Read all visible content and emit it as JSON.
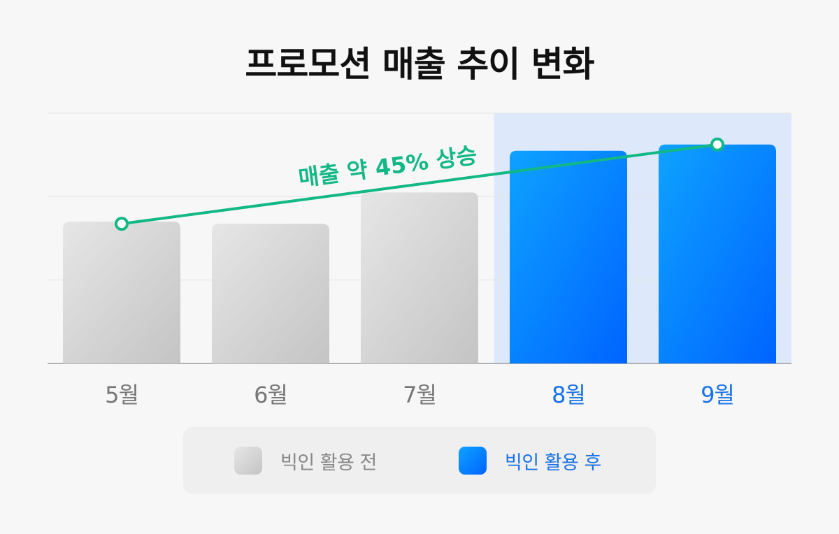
{
  "title": "프로모션 매출 추이 변화",
  "chart_data": {
    "type": "bar",
    "categories": [
      "5월",
      "6월",
      "7월",
      "8월",
      "9월"
    ],
    "values": [
      68,
      67,
      82,
      102,
      105
    ],
    "groups": [
      "빅인 활용 전",
      "빅인 활용 전",
      "빅인 활용 전",
      "빅인 활용 후",
      "빅인 활용 후"
    ],
    "ylim": [
      0,
      120
    ],
    "gridlines": [
      40,
      80,
      120
    ],
    "grid": true,
    "highlight_categories": [
      "8월",
      "9월"
    ],
    "trend_line": {
      "from": "5월",
      "to": "9월",
      "from_value": 67,
      "to_value": 105
    },
    "annotation": "매출 약 45% 상승",
    "legend": [
      {
        "label": "빅인 활용 전",
        "color": "#cfcfcf",
        "text_color": "#888888"
      },
      {
        "label": "빅인 활용 후",
        "color": "#0a84ff",
        "text_color": "#1a73e8"
      }
    ],
    "legend_position": "bottom"
  },
  "colors": {
    "before": "#cfcfcf",
    "after": "#0a84ff",
    "before_label": "#777777",
    "after_label": "#1a73e8",
    "trend": "#12b886",
    "highlight_bg": "#dde9fb"
  }
}
